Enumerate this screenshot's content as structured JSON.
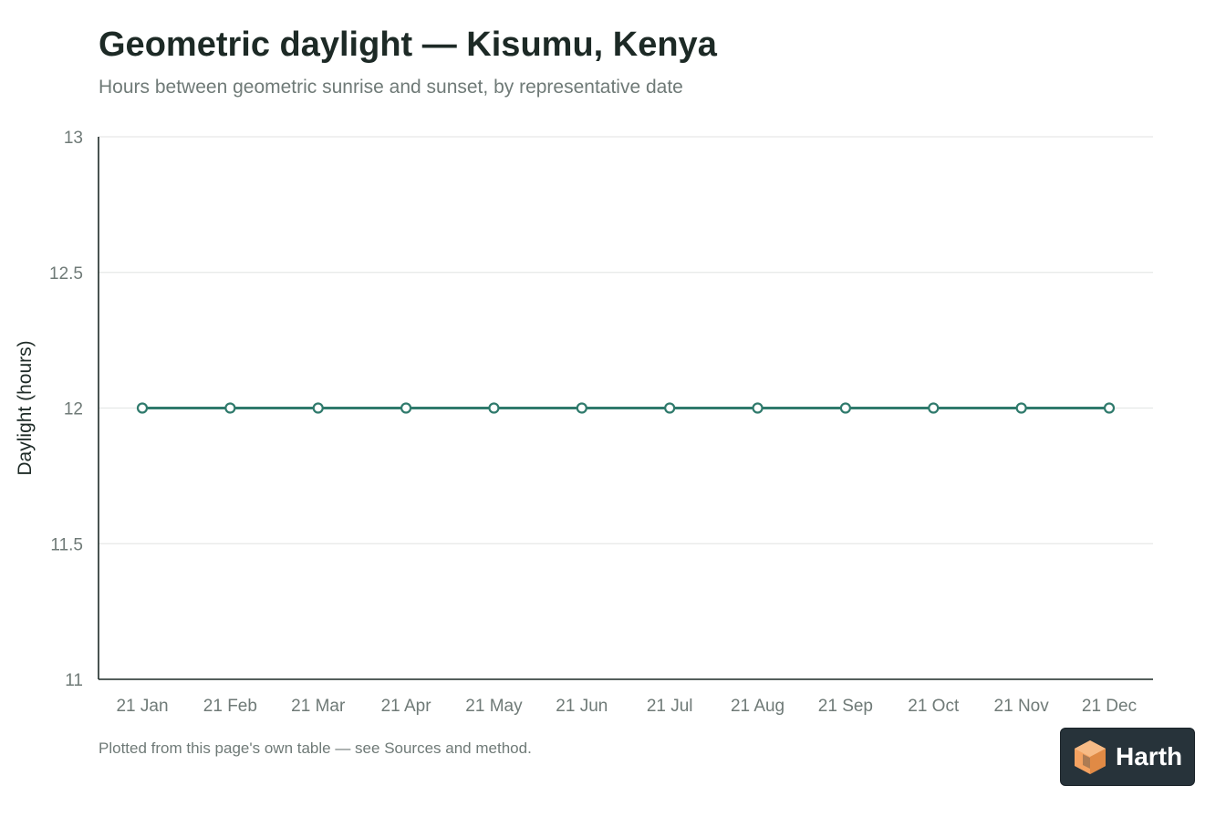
{
  "header": {
    "title": "Geometric daylight — Kisumu, Kenya",
    "subtitle": "Hours between geometric sunrise and sunset, by representative date"
  },
  "footnote": "Plotted from this page's own table — see Sources and method.",
  "badge": {
    "label": "Harth",
    "icon": "cube-logo-icon"
  },
  "colors": {
    "line": "#2f7a6c",
    "axis": "#1d2a26",
    "grid": "#e6e8e7",
    "tick_text": "#6f7a77",
    "logo_orange": "#f4a261"
  },
  "chart_data": {
    "type": "line",
    "title": "Geometric daylight — Kisumu, Kenya",
    "subtitle": "Hours between geometric sunrise and sunset, by representative date",
    "xlabel": "",
    "ylabel": "Daylight (hours)",
    "categories": [
      "21 Jan",
      "21 Feb",
      "21 Mar",
      "21 Apr",
      "21 May",
      "21 Jun",
      "21 Jul",
      "21 Aug",
      "21 Sep",
      "21 Oct",
      "21 Nov",
      "21 Dec"
    ],
    "series": [
      {
        "values": [
          12,
          12,
          12,
          12,
          12,
          12,
          12,
          12,
          12,
          12,
          12,
          12
        ]
      }
    ],
    "ylim": [
      11,
      13
    ],
    "yticks": [
      11,
      11.5,
      12,
      12.5,
      13
    ],
    "ytick_labels": [
      "11",
      "11.5",
      "12",
      "12.5",
      "13"
    ],
    "grid": true,
    "legend": "none",
    "markers": "hollow circles"
  }
}
